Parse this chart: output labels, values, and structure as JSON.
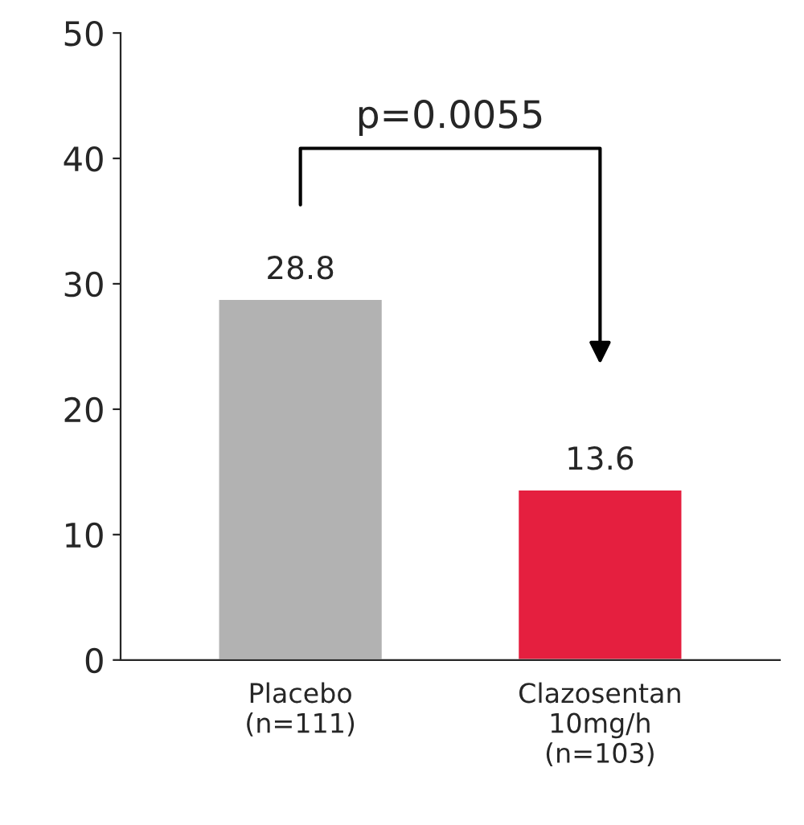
{
  "chart_data": {
    "type": "bar",
    "categories": [
      "Placebo\n(n=111)",
      "Clazosentan\n10mg/h\n(n=103)"
    ],
    "values": [
      28.8,
      13.6
    ],
    "colors": [
      "#b2b2b2",
      "#e51f3f"
    ],
    "ylim": [
      0,
      50
    ],
    "yticks": [
      0,
      10,
      20,
      30,
      40,
      50
    ],
    "data_labels": true,
    "grid": false,
    "annotations": [
      "p=0.0055"
    ]
  }
}
